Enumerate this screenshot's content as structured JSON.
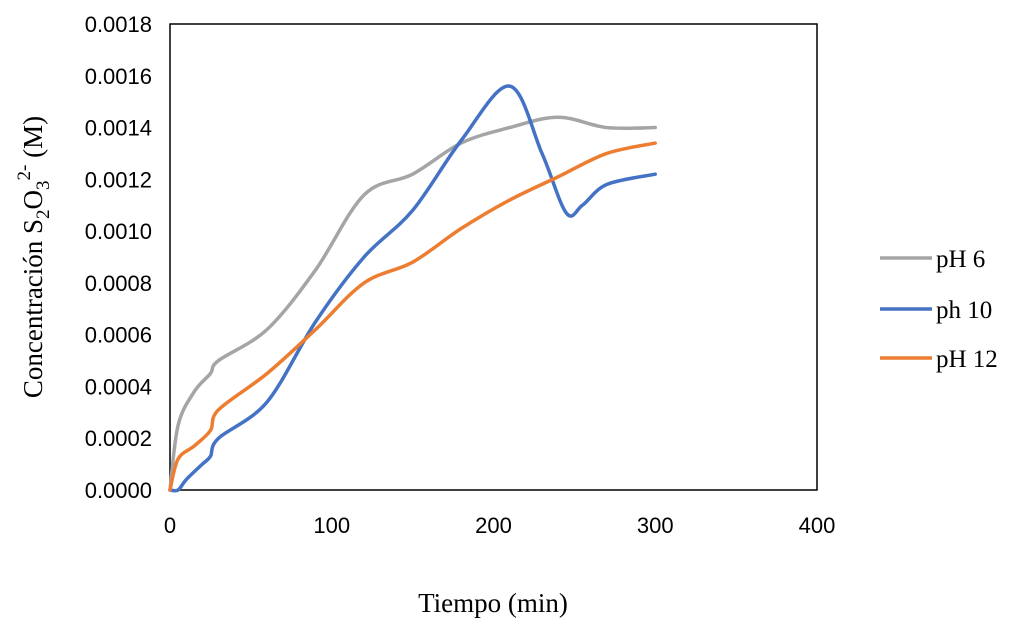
{
  "chart_data": {
    "type": "line",
    "xlabel": "Tiempo (min)",
    "ylabel": {
      "text": "Concentración S",
      "sub1": "2",
      "mid": "O",
      "sub2": "3",
      "sup": "2-",
      "unit": " (M)"
    },
    "xlim": [
      0,
      400
    ],
    "ylim": [
      0,
      0.0018
    ],
    "x_ticks": [
      0,
      100,
      200,
      300,
      400
    ],
    "x_tick_labels": [
      "0",
      "100",
      "200",
      "300",
      "400"
    ],
    "y_ticks": [
      0,
      0.0002,
      0.0004,
      0.0006,
      0.0008,
      0.001,
      0.0012,
      0.0014,
      0.0016,
      0.0018
    ],
    "y_tick_labels": [
      "0.0000",
      "0.0002",
      "0.0004",
      "0.0006",
      "0.0008",
      "0.0010",
      "0.0012",
      "0.0014",
      "0.0016",
      "0.0018"
    ],
    "grid": false,
    "legend_position": "right",
    "series": [
      {
        "name": "pH 6",
        "color": "#a5a5a5",
        "x": [
          0,
          5,
          15,
          25,
          30,
          60,
          90,
          120,
          150,
          180,
          210,
          240,
          270,
          300
        ],
        "y": [
          0,
          0.00025,
          0.00038,
          0.00045,
          0.0005,
          0.00062,
          0.00085,
          0.00114,
          0.00122,
          0.00134,
          0.0014,
          0.00144,
          0.0014,
          0.0014
        ]
      },
      {
        "name": "ph 10",
        "color": "#4472c4",
        "x": [
          0,
          5,
          10,
          20,
          25,
          30,
          60,
          90,
          120,
          150,
          180,
          210,
          230,
          245,
          255,
          270,
          300
        ],
        "y": [
          0,
          0,
          4e-05,
          0.0001,
          0.00013,
          0.0002,
          0.00034,
          0.00065,
          0.0009,
          0.00108,
          0.00135,
          0.00156,
          0.0013,
          0.00107,
          0.0011,
          0.00118,
          0.00122
        ]
      },
      {
        "name": "pH 12",
        "color": "#ed7d31",
        "x": [
          0,
          5,
          15,
          25,
          30,
          60,
          90,
          120,
          150,
          180,
          210,
          240,
          270,
          300
        ],
        "y": [
          0,
          0.00012,
          0.00017,
          0.00023,
          0.00031,
          0.00045,
          0.00062,
          0.0008,
          0.00088,
          0.00101,
          0.00112,
          0.00121,
          0.0013,
          0.00134
        ]
      }
    ]
  }
}
